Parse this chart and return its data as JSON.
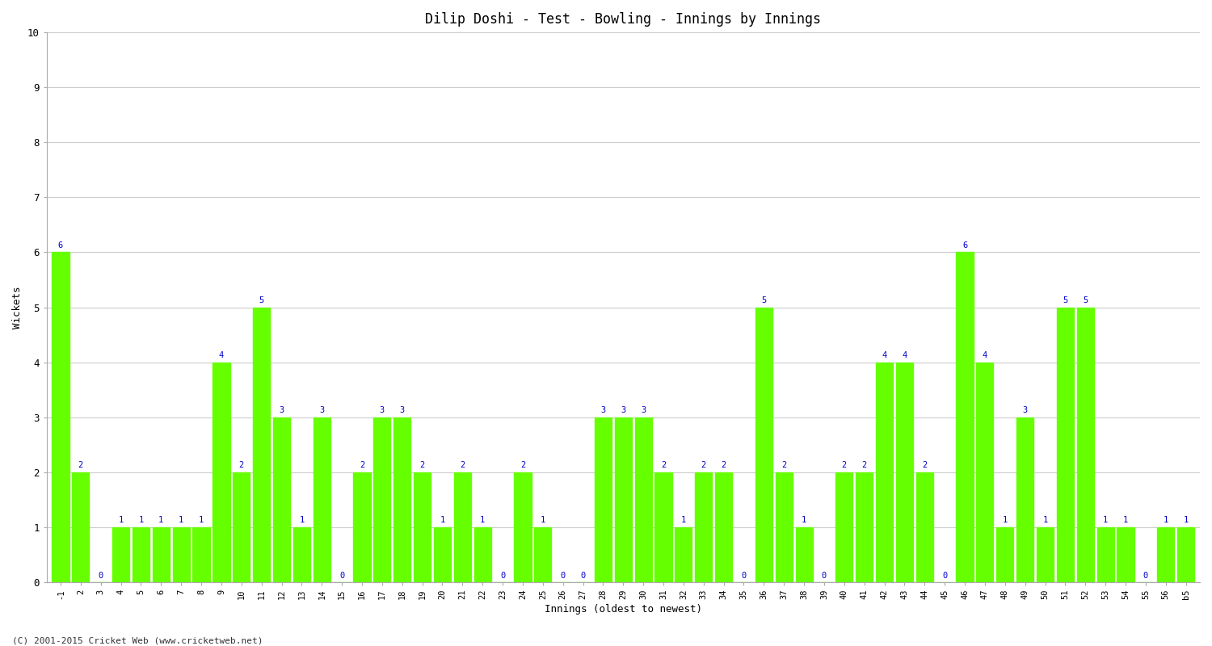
{
  "title": "Dilip Doshi - Test - Bowling - Innings by Innings",
  "xlabel": "Innings (oldest to newest)",
  "ylabel": "Wickets",
  "bar_color": "#66ff00",
  "label_color": "#0000cc",
  "background_color": "#ffffff",
  "grid_color": "#cccccc",
  "ylim": [
    0,
    10
  ],
  "yticks": [
    0,
    1,
    2,
    3,
    4,
    5,
    6,
    7,
    8,
    9,
    10
  ],
  "footer": "(C) 2001-2015 Cricket Web (www.cricketweb.net)",
  "wickets": [
    6,
    2,
    0,
    1,
    1,
    1,
    1,
    1,
    4,
    2,
    5,
    3,
    1,
    3,
    0,
    2,
    3,
    3,
    2,
    1,
    2,
    1,
    0,
    2,
    1,
    0,
    0,
    3,
    3,
    3,
    2,
    1,
    2,
    2,
    0,
    5,
    2,
    1,
    0,
    2,
    2,
    4,
    4,
    2,
    0,
    6,
    4,
    1,
    3,
    1,
    5,
    5,
    1,
    1,
    0,
    1,
    1
  ],
  "labels": [
    "-1",
    "2",
    "3",
    "4",
    "5",
    "6",
    "7",
    "8",
    "9",
    "10",
    "11",
    "12",
    "13",
    "14",
    "15",
    "16",
    "17",
    "18",
    "19",
    "20",
    "21",
    "22",
    "23",
    "24",
    "25",
    "26",
    "27",
    "28",
    "29",
    "30",
    "31",
    "32",
    "33",
    "34",
    "35",
    "36",
    "37",
    "38",
    "39",
    "40",
    "41",
    "42",
    "43",
    "44",
    "45",
    "46",
    "47",
    "48",
    "49",
    "50",
    "51",
    "52",
    "53",
    "54",
    "55",
    "56",
    "b5"
  ]
}
